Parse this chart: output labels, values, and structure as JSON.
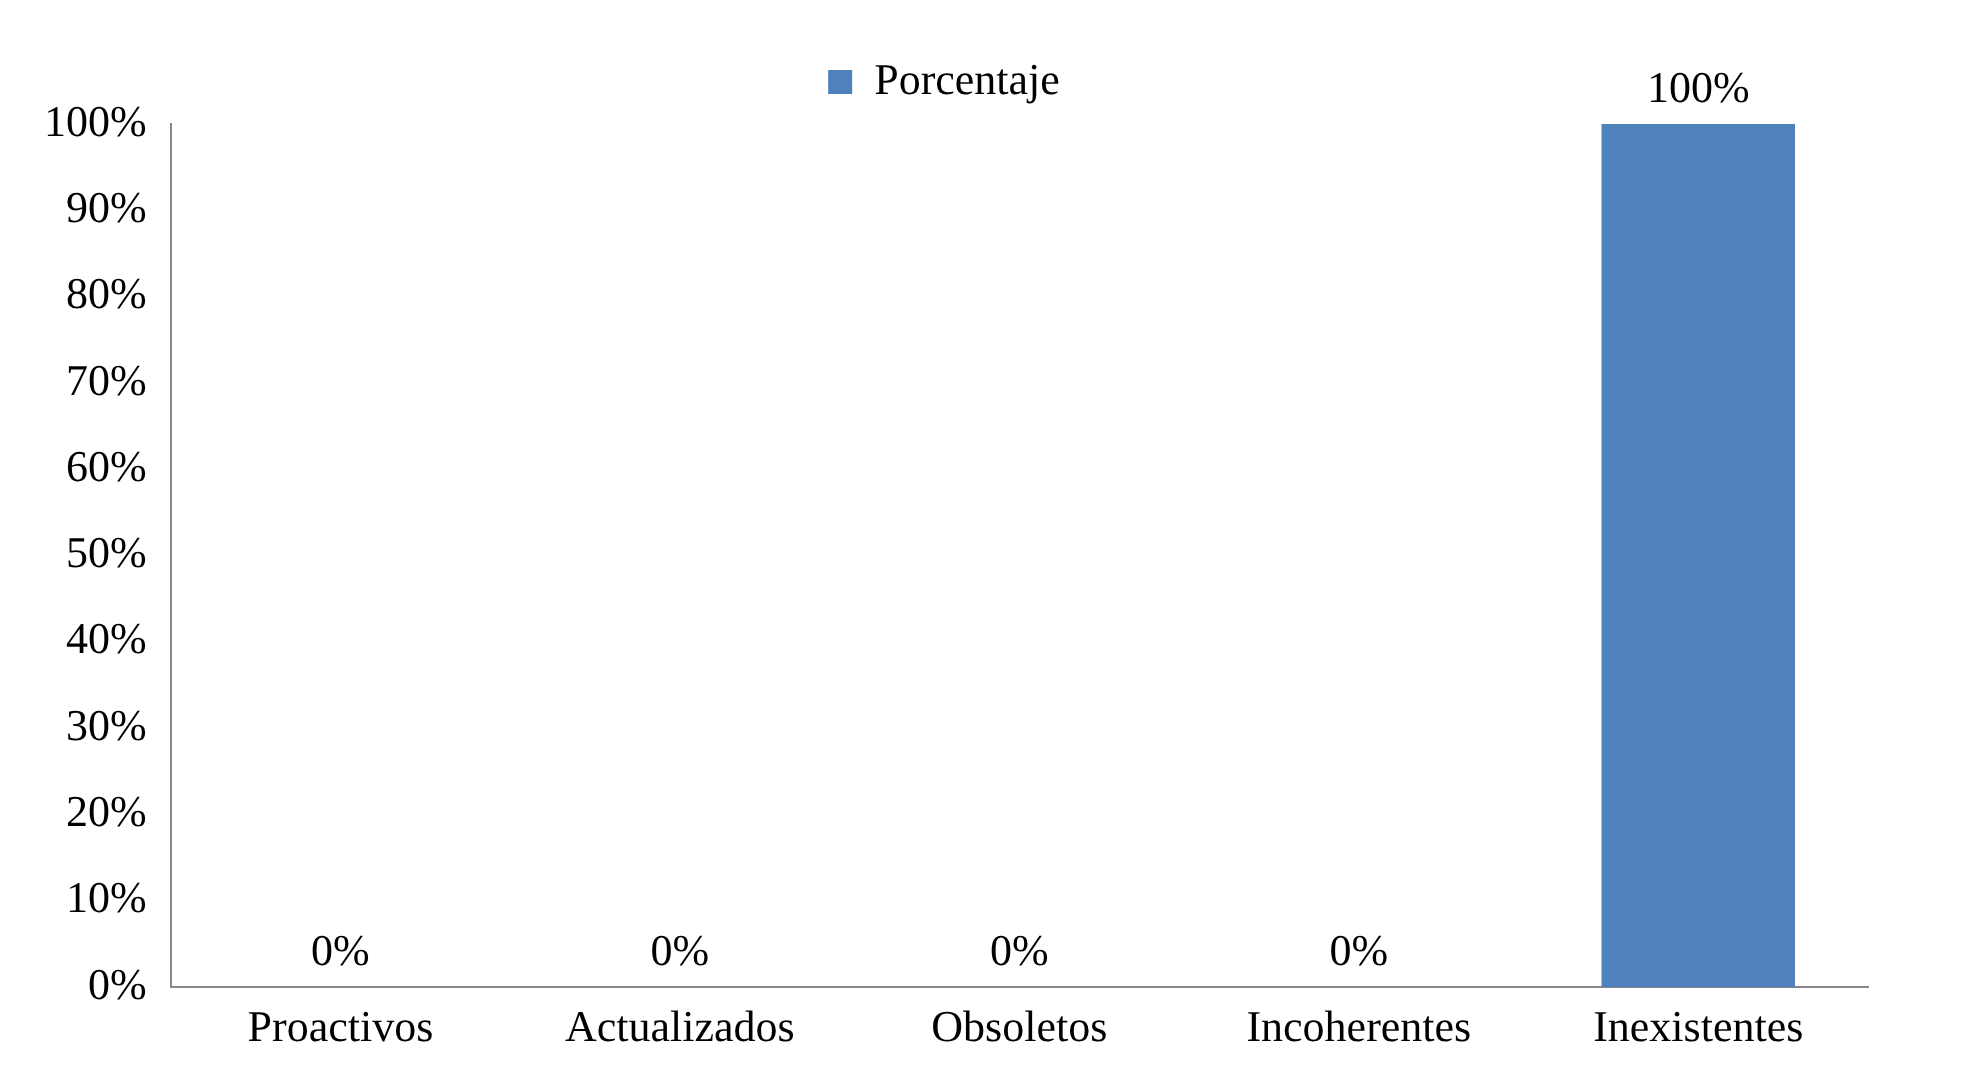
{
  "chart_data": {
    "type": "bar",
    "categories": [
      "Proactivos",
      "Actualizados",
      "Obsoletos",
      "Incoherentes",
      "Inexistentes"
    ],
    "series": [
      {
        "name": "Porcentaje",
        "color": "#4f81bd",
        "values": [
          0,
          0,
          0,
          0,
          100
        ],
        "value_labels": [
          "0%",
          "0%",
          "0%",
          "0%",
          "100%"
        ]
      }
    ],
    "ylim": [
      0,
      100
    ],
    "yticks": [
      {
        "value": 0,
        "label": "0%"
      },
      {
        "value": 10,
        "label": "10%"
      },
      {
        "value": 20,
        "label": "20%"
      },
      {
        "value": 30,
        "label": "30%"
      },
      {
        "value": 40,
        "label": "40%"
      },
      {
        "value": 50,
        "label": "50%"
      },
      {
        "value": 60,
        "label": "60%"
      },
      {
        "value": 70,
        "label": "70%"
      },
      {
        "value": 80,
        "label": "80%"
      },
      {
        "value": 90,
        "label": "90%"
      },
      {
        "value": 100,
        "label": "100%"
      }
    ],
    "grid": false,
    "legend": "top"
  }
}
